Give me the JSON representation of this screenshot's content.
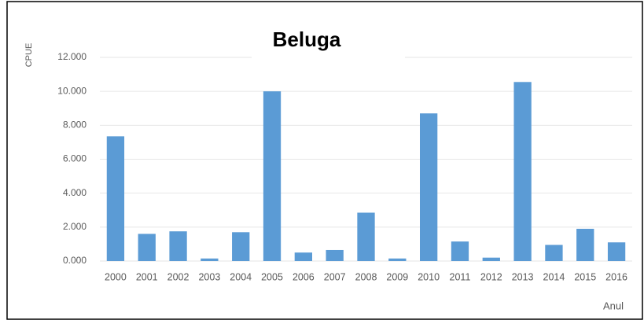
{
  "chart_data": {
    "type": "bar",
    "title": "Beluga",
    "y_label": "CPUE",
    "x_label": "Anul",
    "categories": [
      "2000",
      "2001",
      "2002",
      "2003",
      "2004",
      "2005",
      "2006",
      "2007",
      "2008",
      "2009",
      "2010",
      "2011",
      "2012",
      "2013",
      "2014",
      "2015",
      "2016"
    ],
    "values": [
      7.35,
      1.6,
      1.75,
      0.15,
      1.7,
      10.0,
      0.5,
      0.65,
      2.85,
      0.15,
      8.7,
      1.15,
      0.2,
      10.55,
      0.95,
      1.9,
      1.1
    ],
    "color": "#5b9bd5",
    "ylim": [
      0,
      12
    ],
    "yticks": [
      {
        "value": 0,
        "label": "0.000"
      },
      {
        "value": 2,
        "label": "2.000"
      },
      {
        "value": 4,
        "label": "4.000"
      },
      {
        "value": 6,
        "label": "6.000"
      },
      {
        "value": 8,
        "label": "8.000"
      },
      {
        "value": 10,
        "label": "10.000"
      },
      {
        "value": 12,
        "label": "12.000"
      }
    ],
    "grid": true
  }
}
